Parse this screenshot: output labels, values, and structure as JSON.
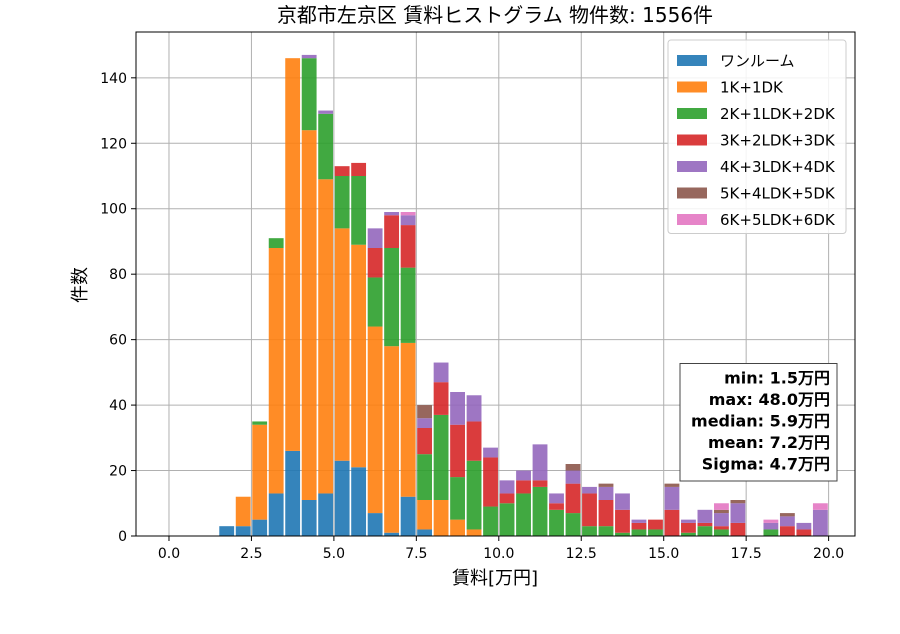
{
  "chart_data": {
    "type": "bar",
    "stacked": true,
    "title": "京都市左京区 賃料ヒストグラム 物件数: 1556件",
    "xlabel": "賃料[万円]",
    "ylabel": "件数",
    "xlim": [
      -1.0,
      20.8
    ],
    "ylim": [
      0,
      154
    ],
    "xticks": [
      0.0,
      2.5,
      5.0,
      7.5,
      10.0,
      12.5,
      15.0,
      17.5,
      20.0
    ],
    "xtick_labels": [
      "0.0",
      "2.5",
      "5.0",
      "7.5",
      "10.0",
      "12.5",
      "15.0",
      "17.5",
      "20.0"
    ],
    "yticks": [
      0,
      20,
      40,
      60,
      80,
      100,
      120,
      140
    ],
    "ytick_labels": [
      "0",
      "20",
      "40",
      "60",
      "80",
      "100",
      "120",
      "140"
    ],
    "grid": true,
    "legend_position": "top-right",
    "bin_width": 0.5,
    "bin_starts": [
      1.5,
      2.0,
      2.5,
      3.0,
      3.5,
      4.0,
      4.5,
      5.0,
      5.5,
      6.0,
      6.5,
      7.0,
      7.5,
      8.0,
      8.5,
      9.0,
      9.5,
      10.0,
      10.5,
      11.0,
      11.5,
      12.0,
      12.5,
      13.0,
      13.5,
      14.0,
      14.5,
      15.0,
      15.5,
      16.0,
      16.5,
      17.0,
      17.5,
      18.0,
      18.5,
      19.0,
      19.5
    ],
    "series": [
      {
        "name": "ワンルーム",
        "color": "#1f77b4",
        "values": [
          3,
          3,
          5,
          13,
          26,
          11,
          13,
          23,
          21,
          7,
          1,
          12,
          2,
          0,
          0,
          0,
          0,
          0,
          0,
          0,
          0,
          0,
          0,
          0,
          0,
          0,
          0,
          0,
          0,
          0,
          0,
          0,
          0,
          0,
          0,
          0,
          0
        ]
      },
      {
        "name": "1K+1DK",
        "color": "#ff7f0e",
        "values": [
          0,
          9,
          29,
          75,
          120,
          113,
          96,
          71,
          68,
          57,
          57,
          47,
          9,
          11,
          5,
          2,
          0,
          0,
          0,
          0,
          0,
          0,
          0,
          0,
          0,
          0,
          0,
          0,
          0,
          0,
          0,
          0,
          0,
          0,
          0,
          0,
          0
        ]
      },
      {
        "name": "2K+1LDK+2DK",
        "color": "#2ca02c",
        "values": [
          0,
          0,
          1,
          3,
          0,
          22,
          20,
          16,
          21,
          15,
          30,
          23,
          14,
          26,
          13,
          21,
          9,
          10,
          13,
          15,
          8,
          7,
          3,
          3,
          1,
          2,
          2,
          0,
          1,
          3,
          2,
          0,
          0,
          2,
          0,
          0,
          0
        ]
      },
      {
        "name": "3K+2LDK+3DK",
        "color": "#d62728",
        "values": [
          0,
          0,
          0,
          0,
          0,
          0,
          0,
          3,
          4,
          9,
          10,
          13,
          8,
          10,
          16,
          12,
          15,
          3,
          4,
          2,
          2,
          9,
          10,
          8,
          7,
          2,
          3,
          8,
          3,
          1,
          1,
          4,
          0,
          0,
          3,
          2,
          0
        ]
      },
      {
        "name": "4K+3LDK+4DK",
        "color": "#9467bd",
        "values": [
          0,
          0,
          0,
          0,
          0,
          1,
          1,
          0,
          0,
          6,
          1,
          3,
          3,
          6,
          10,
          8,
          3,
          4,
          3,
          11,
          3,
          4,
          2,
          4,
          5,
          1,
          0,
          7,
          1,
          4,
          4,
          6,
          0,
          2,
          3,
          2,
          8
        ]
      },
      {
        "name": "5K+4LDK+5DK",
        "color": "#8c564b",
        "values": [
          0,
          0,
          0,
          0,
          0,
          0,
          0,
          0,
          0,
          0,
          0,
          0,
          4,
          0,
          0,
          0,
          0,
          0,
          0,
          0,
          0,
          2,
          0,
          1,
          0,
          0,
          0,
          1,
          0,
          0,
          1,
          1,
          0,
          0,
          1,
          0,
          0
        ]
      },
      {
        "name": "6K+5LDK+6DK",
        "color": "#e377c2",
        "values": [
          0,
          0,
          0,
          0,
          0,
          0,
          0,
          0,
          0,
          0,
          0,
          1,
          0,
          0,
          0,
          0,
          0,
          0,
          0,
          0,
          0,
          0,
          0,
          0,
          0,
          0,
          0,
          0,
          0,
          0,
          2,
          0,
          0,
          1,
          0,
          0,
          2
        ]
      }
    ],
    "stats_box": {
      "position": "bottom-right",
      "lines": [
        "min: 1.5万円",
        "max: 48.0万円",
        "median: 5.9万円",
        "mean: 7.2万円",
        "Sigma: 4.7万円"
      ]
    },
    "colors": {
      "grid": "#b0b0b0",
      "axes": "#000000",
      "legend_border": "#cccccc"
    }
  }
}
